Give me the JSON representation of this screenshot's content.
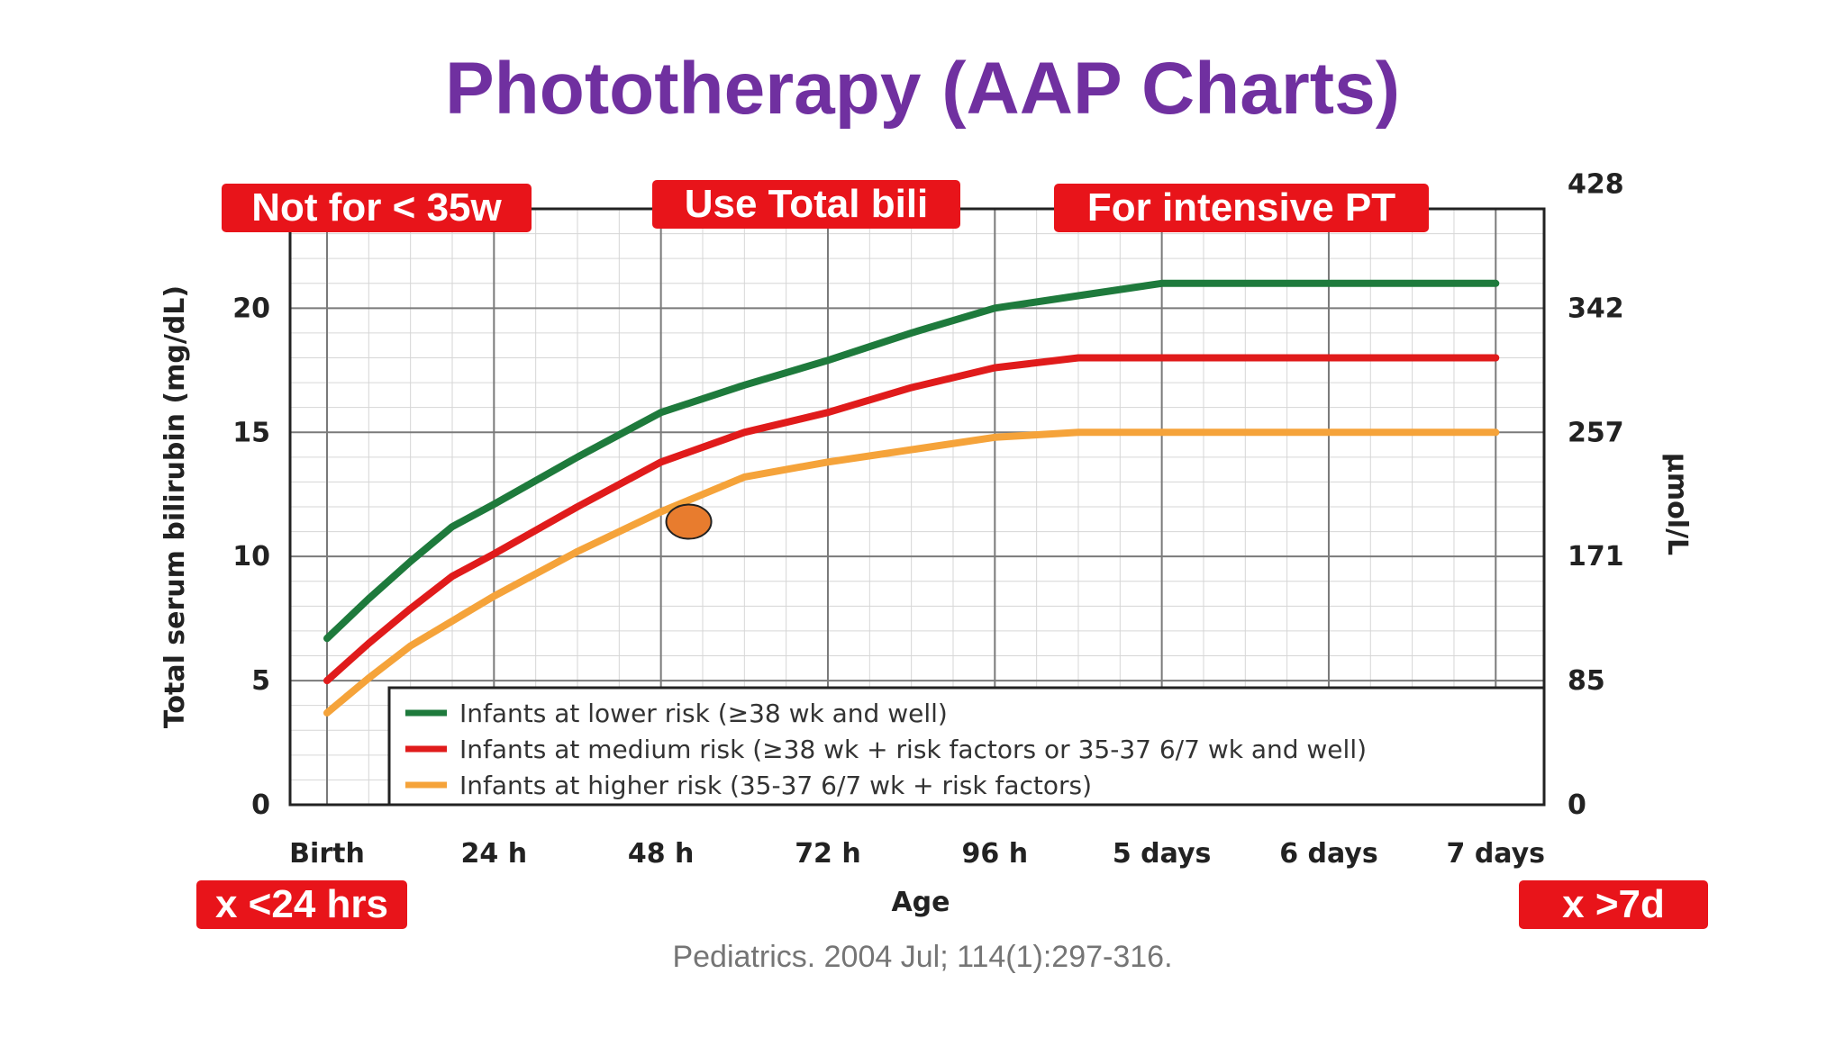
{
  "title": "Phototherapy (AAP Charts)",
  "callouts": {
    "gestation": "Not for < 35w",
    "total_bili": "Use Total bili",
    "intensive": "For intensive PT",
    "early": "x <24 hrs",
    "late": "x >7d"
  },
  "citation": "Pediatrics. 2004 Jul; 114(1):297-316.",
  "colors": {
    "title": "#7030a0",
    "callout": "#e8141a",
    "lower": "#1e7a3c",
    "medium": "#e01b1b",
    "higher": "#f5a33a",
    "marker": "#e87c2e"
  },
  "chart_data": {
    "type": "line",
    "xlabel": "Age",
    "ylabel": "Total serum bilirubin (mg/dL)",
    "y2label": "µmol/L",
    "x_ticks": [
      "Birth",
      "24 h",
      "48 h",
      "72 h",
      "96 h",
      "5 days",
      "6 days",
      "7 days"
    ],
    "xlim": [
      -24,
      168
    ],
    "ylim": [
      0,
      24
    ],
    "y_ticks": [
      0,
      5,
      10,
      15,
      20
    ],
    "y2_ticks": [
      "0",
      "85",
      "171",
      "257",
      "342",
      "428"
    ],
    "y2_tick_values": [
      0,
      5,
      10,
      15,
      20,
      25
    ],
    "grid": true,
    "legend_position": "bottom-right",
    "x_unit": "hours of age",
    "series": [
      {
        "name": "Infants at lower risk (≥38 wk and well)",
        "color": "#1e7a3c",
        "x": [
          0,
          6,
          12,
          18,
          24,
          36,
          48,
          60,
          72,
          84,
          96,
          108,
          120,
          168
        ],
        "y": [
          6.7,
          8.3,
          9.8,
          11.2,
          12.1,
          14.0,
          15.8,
          16.9,
          17.9,
          19.0,
          20.0,
          20.5,
          21.0,
          21.0
        ]
      },
      {
        "name": "Infants at medium risk (≥38 wk + risk factors or 35-37 6/7 wk and well)",
        "color": "#e01b1b",
        "x": [
          0,
          6,
          12,
          18,
          24,
          36,
          48,
          60,
          72,
          84,
          96,
          108,
          168
        ],
        "y": [
          5.0,
          6.5,
          7.9,
          9.2,
          10.1,
          12.0,
          13.8,
          15.0,
          15.8,
          16.8,
          17.6,
          18.0,
          18.0
        ]
      },
      {
        "name": "Infants at higher risk (35-37 6/7 wk + risk factors)",
        "color": "#f5a33a",
        "x": [
          0,
          6,
          12,
          18,
          24,
          36,
          48,
          60,
          72,
          84,
          96,
          108,
          168
        ],
        "y": [
          3.7,
          5.1,
          6.4,
          7.4,
          8.4,
          10.2,
          11.8,
          13.2,
          13.8,
          14.3,
          14.8,
          15.0,
          15.0
        ]
      }
    ],
    "highlight_point": {
      "x": 52,
      "y": 11.4
    }
  }
}
